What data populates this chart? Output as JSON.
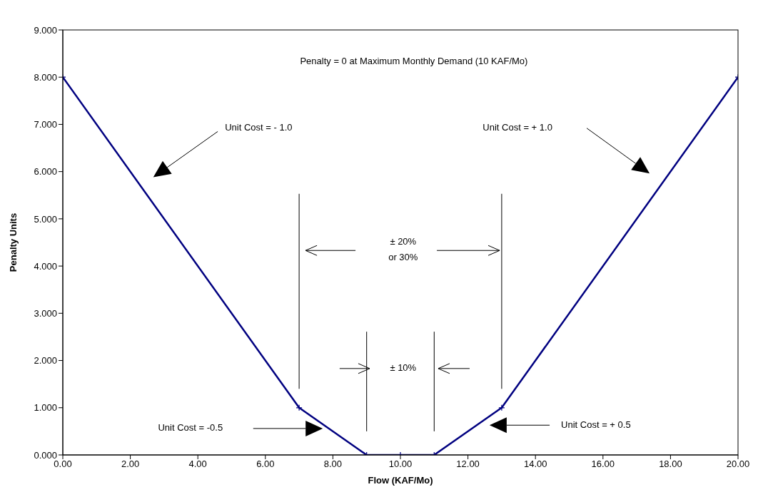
{
  "chart_data": {
    "type": "line",
    "xlabel": "Flow (KAF/Mo)",
    "ylabel": "Penalty Units",
    "x": [
      0,
      7,
      9,
      10,
      11,
      13,
      20
    ],
    "series": [
      {
        "color": "#000080",
        "values": [
          8,
          1,
          0,
          0,
          0,
          1,
          8
        ]
      }
    ],
    "marker": "cross",
    "xlim": [
      0,
      20
    ],
    "xticks": [
      {
        "value": 0,
        "label": "0.00"
      },
      {
        "value": 2,
        "label": "2.00"
      },
      {
        "value": 4,
        "label": "4.00"
      },
      {
        "value": 6,
        "label": "6.00"
      },
      {
        "value": 8,
        "label": "8.00"
      },
      {
        "value": 10,
        "label": "10.00"
      },
      {
        "value": 12,
        "label": "12.00"
      },
      {
        "value": 14,
        "label": "14.00"
      },
      {
        "value": 16,
        "label": "16.00"
      },
      {
        "value": 18,
        "label": "18.00"
      },
      {
        "value": 20,
        "label": "20.00"
      }
    ],
    "ylim": [
      0,
      9
    ],
    "yticks": [
      {
        "value": 0,
        "label": "0.000"
      },
      {
        "value": 1,
        "label": "1.000"
      },
      {
        "value": 2,
        "label": "2.000"
      },
      {
        "value": 3,
        "label": "3.000"
      },
      {
        "value": 4,
        "label": "4.000"
      },
      {
        "value": 5,
        "label": "5.000"
      },
      {
        "value": 6,
        "label": "6.000"
      },
      {
        "value": 7,
        "label": "7.000"
      },
      {
        "value": 8,
        "label": "8.000"
      },
      {
        "value": 9,
        "label": "9.000"
      }
    ],
    "annotations": [
      "Penalty = 0 at Maximum Monthly Demand (10 KAF/Mo)",
      "Unit Cost = - 1.0",
      "Unit Cost = + 1.0",
      "± 20%",
      "or 30%",
      "± 10%",
      "Unit Cost = -0.5",
      "Unit Cost = + 0.5"
    ]
  }
}
